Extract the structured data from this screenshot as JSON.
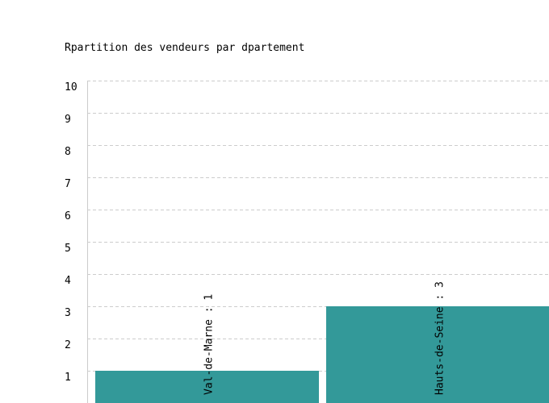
{
  "chart_data": {
    "type": "bar",
    "title": "Rpartition des vendeurs par dpartement",
    "values": [
      1,
      3
    ],
    "value_labels": [
      "Val-de-Marne : 1",
      "Hauts-de-Seine : 3"
    ],
    "color": "#339999",
    "ylim": [
      0,
      10
    ],
    "yticks": [
      1,
      2,
      3,
      4,
      5,
      6,
      7,
      8,
      9,
      10
    ],
    "grid": true
  }
}
